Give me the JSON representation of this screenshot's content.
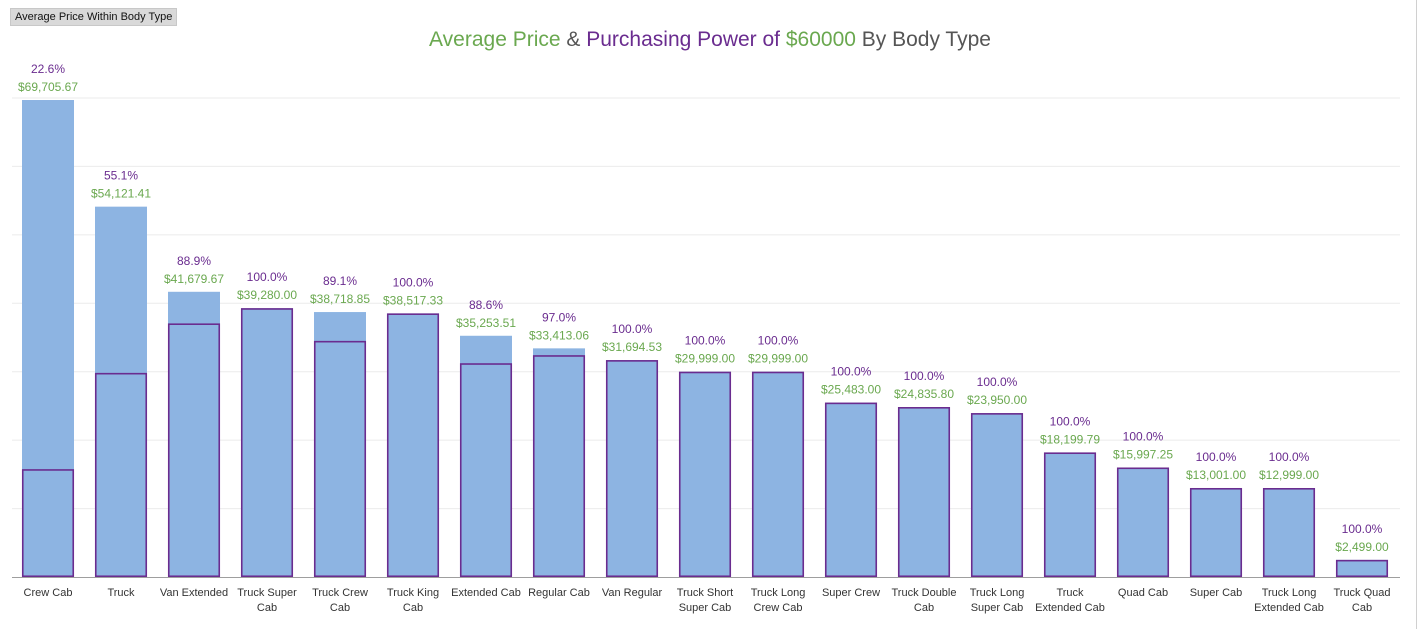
{
  "tab": {
    "label": "Average Price Within Body Type"
  },
  "title": {
    "part1": "Average Price",
    "part2": " & ",
    "part3": "Purchasing Power of ",
    "part4": "$60000",
    "part5": " By Body Type"
  },
  "colors": {
    "bar_fill": "#8db4e2",
    "outline": "#6a2c8f",
    "price_text": "#6aa84f",
    "pct_text": "#6a2c8f",
    "gridline": "#ebebeb",
    "axis": "#9e9e9e"
  },
  "chart_data": {
    "type": "bar",
    "grid": true,
    "ylim": [
      0,
      70000
    ],
    "budget": 60000,
    "categories": [
      [
        "Crew Cab"
      ],
      [
        "Truck"
      ],
      [
        "Van Extended"
      ],
      [
        "Truck Super",
        "Cab"
      ],
      [
        "Truck Crew",
        "Cab"
      ],
      [
        "Truck King",
        "Cab"
      ],
      [
        "Extended Cab"
      ],
      [
        "Regular Cab"
      ],
      [
        "Van Regular"
      ],
      [
        "Truck Short",
        "Super Cab"
      ],
      [
        "Truck Long",
        "Crew Cab"
      ],
      [
        "Super Crew"
      ],
      [
        "Truck Double",
        "Cab"
      ],
      [
        "Truck Long",
        "Super Cab"
      ],
      [
        "Truck",
        "Extended Cab"
      ],
      [
        "Quad Cab"
      ],
      [
        "Super Cab"
      ],
      [
        "Truck Long",
        "Extended Cab"
      ],
      [
        "Truck Quad",
        "Cab"
      ]
    ],
    "series": [
      {
        "name": "Average Price",
        "values": [
          69705.67,
          54121.41,
          41679.67,
          39280.0,
          38718.85,
          38517.33,
          35253.51,
          33413.06,
          31694.53,
          29999.0,
          29999.0,
          25483.0,
          24835.8,
          23950.0,
          18199.79,
          15997.25,
          13001.0,
          12999.0,
          2499.0
        ],
        "labels": [
          "$69,705.67",
          "$54,121.41",
          "$41,679.67",
          "$39,280.00",
          "$38,718.85",
          "$38,517.33",
          "$35,253.51",
          "$33,413.06",
          "$31,694.53",
          "$29,999.00",
          "$29,999.00",
          "$25,483.00",
          "$24,835.80",
          "$23,950.00",
          "$18,199.79",
          "$15,997.25",
          "$13,001.00",
          "$12,999.00",
          "$2,499.00"
        ]
      },
      {
        "name": "Purchasing Power",
        "values": [
          22.6,
          55.1,
          88.9,
          100.0,
          89.1,
          100.0,
          88.6,
          97.0,
          100.0,
          100.0,
          100.0,
          100.0,
          100.0,
          100.0,
          100.0,
          100.0,
          100.0,
          100.0,
          100.0
        ],
        "labels": [
          "22.6%",
          "55.1%",
          "88.9%",
          "100.0%",
          "89.1%",
          "100.0%",
          "88.6%",
          "97.0%",
          "100.0%",
          "100.0%",
          "100.0%",
          "100.0%",
          "100.0%",
          "100.0%",
          "100.0%",
          "100.0%",
          "100.0%",
          "100.0%",
          "100.0%"
        ]
      }
    ]
  }
}
